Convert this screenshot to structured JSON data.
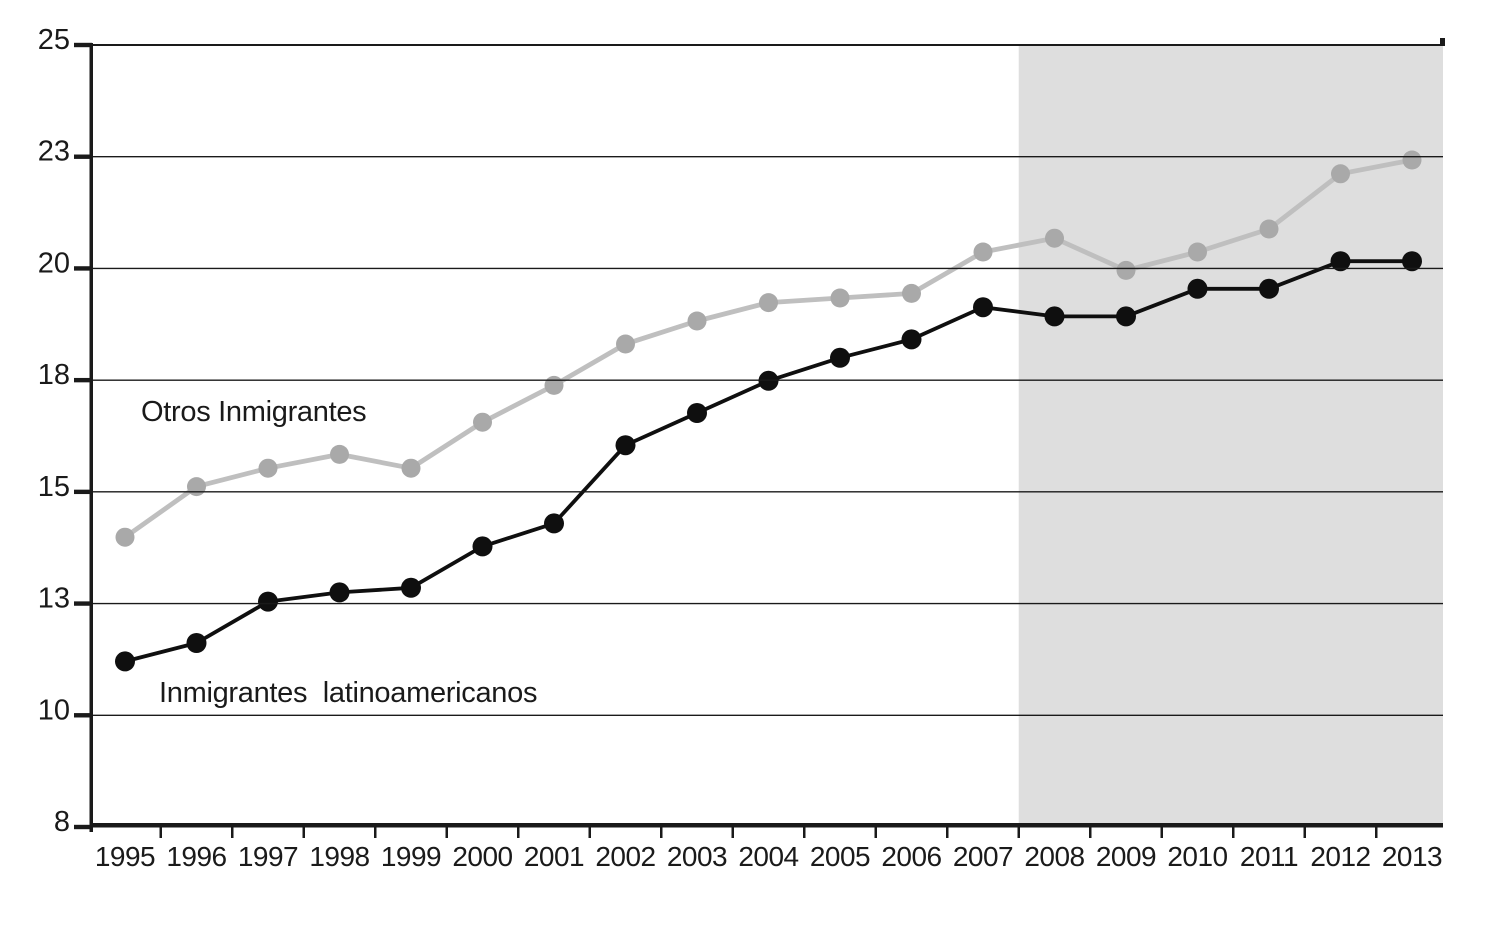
{
  "chart_data": {
    "type": "line",
    "categories": [
      "1995",
      "1996",
      "1997",
      "1998",
      "1999",
      "2000",
      "2001",
      "2002",
      "2003",
      "2004",
      "2005",
      "2006",
      "2007",
      "2008",
      "2009",
      "2010",
      "2011",
      "2012",
      "2013"
    ],
    "series": [
      {
        "name": "Otros Inmigrantes",
        "color": "#bfbfbf",
        "marker_color": "#a9a9a9",
        "marker": "circle",
        "values": [
          14.3,
          15.4,
          15.8,
          16.1,
          15.8,
          16.8,
          17.6,
          18.5,
          19.0,
          19.4,
          19.5,
          19.6,
          20.5,
          20.8,
          20.1,
          20.5,
          21.0,
          22.2,
          22.5
        ]
      },
      {
        "name": "Inmigrantes latinoamericanos",
        "color": "#0f0f0f",
        "marker_color": "#0f0f0f",
        "marker": "circle",
        "values": [
          11.6,
          12.0,
          12.9,
          13.1,
          13.2,
          14.1,
          14.6,
          16.3,
          17.0,
          17.7,
          18.2,
          18.6,
          19.3,
          19.1,
          19.1,
          19.7,
          19.7,
          20.3,
          20.3
        ]
      }
    ],
    "title": "",
    "xlabel": "",
    "ylabel": "",
    "ylim": [
      8,
      25
    ],
    "ytick_labels": [
      "25",
      "23",
      "20",
      "18",
      "15",
      "13",
      "10",
      "8"
    ],
    "ytick_spacing": "equal",
    "grid": "horizontal",
    "legend_position": "in-plot-text-labels",
    "shaded_region": {
      "from_x": 2007.5,
      "to_x": 2013,
      "color": "#dedede"
    },
    "annotations": [
      {
        "text": "Otros Inmigrantes",
        "series": "Otros Inmigrantes"
      },
      {
        "text": "Inmigrantes  latinoamericanos",
        "series": "Inmigrantes latinoamericanos"
      }
    ],
    "axis_color": "#1a1a1a"
  }
}
